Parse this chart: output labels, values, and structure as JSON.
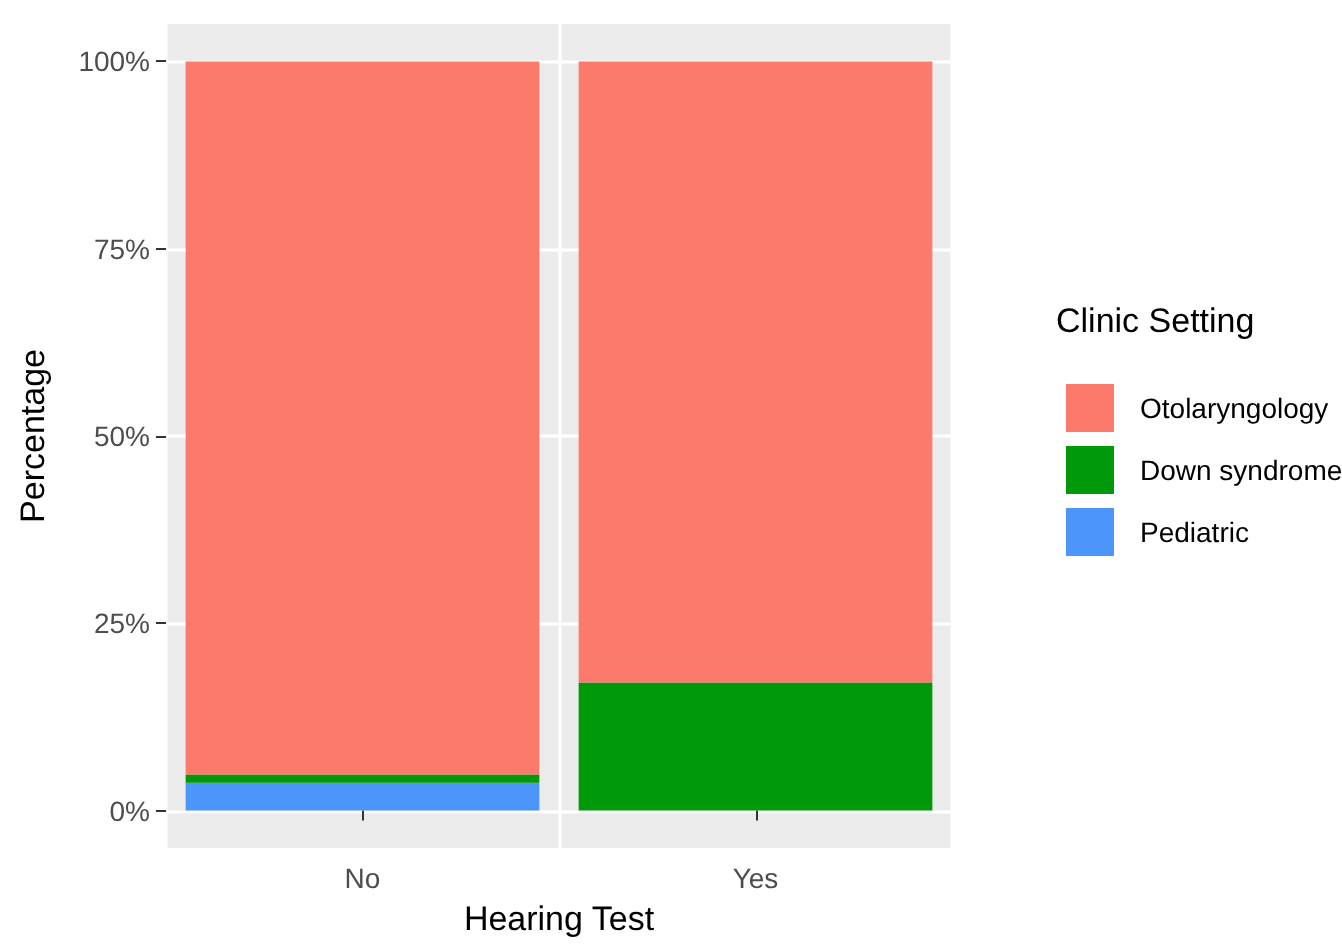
{
  "chart_data": {
    "type": "bar",
    "stacked": true,
    "xlabel": "Hearing Test",
    "ylabel": "Percentage",
    "legend_title": "Clinic Setting",
    "categories": [
      "No",
      "Yes"
    ],
    "series": [
      {
        "name": "Pediatric",
        "color": "#4c96fb",
        "values": [
          3.7,
          0
        ]
      },
      {
        "name": "Down syndrome",
        "color": "#00990a",
        "values": [
          1.1,
          17.1
        ]
      },
      {
        "name": "Otolaryngology",
        "color": "#fc7a6b",
        "values": [
          95.2,
          82.9
        ]
      }
    ],
    "ylim": [
      -5,
      105
    ],
    "yticks": [
      {
        "value": 0,
        "label": "0%"
      },
      {
        "value": 25,
        "label": "25%"
      },
      {
        "value": 50,
        "label": "50%"
      },
      {
        "value": 75,
        "label": "75%"
      },
      {
        "value": 100,
        "label": "100%"
      }
    ],
    "grid": true,
    "legend": "right"
  }
}
